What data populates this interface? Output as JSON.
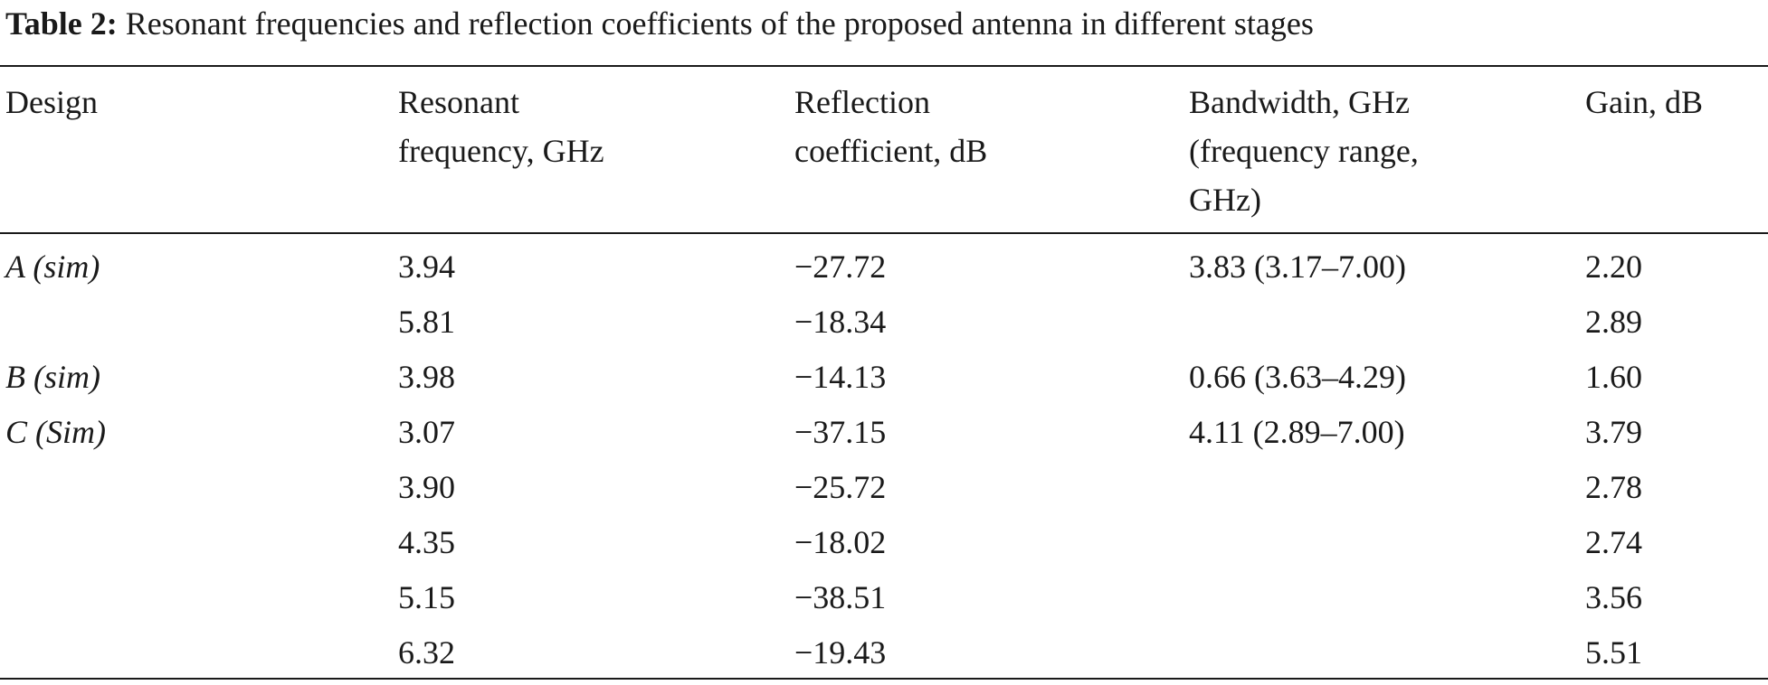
{
  "caption": {
    "label": "Table 2:",
    "text": "Resonant frequencies and reflection coefficients of the proposed antenna in different stages"
  },
  "headers": [
    "Design",
    "Resonant\nfrequency, GHz",
    "Reflection\ncoefficient, dB",
    "Bandwidth, GHz\n(frequency range,\nGHz)",
    "Gain, dB"
  ],
  "rows": [
    {
      "design": "A (sim)",
      "freq": "3.94",
      "refl": "−27.72",
      "bw": "3.83 (3.17–7.00)",
      "gain": "2.20"
    },
    {
      "design": "",
      "freq": "5.81",
      "refl": "−18.34",
      "bw": "",
      "gain": "2.89"
    },
    {
      "design": "B (sim)",
      "freq": "3.98",
      "refl": "−14.13",
      "bw": "0.66 (3.63–4.29)",
      "gain": "1.60"
    },
    {
      "design": "C (Sim)",
      "freq": "3.07",
      "refl": "−37.15",
      "bw": "4.11 (2.89–7.00)",
      "gain": "3.79"
    },
    {
      "design": "",
      "freq": "3.90",
      "refl": "−25.72",
      "bw": "",
      "gain": "2.78"
    },
    {
      "design": "",
      "freq": "4.35",
      "refl": "−18.02",
      "bw": "",
      "gain": "2.74"
    },
    {
      "design": "",
      "freq": "5.15",
      "refl": "−38.51",
      "bw": "",
      "gain": "3.56"
    },
    {
      "design": "",
      "freq": "6.32",
      "refl": "−19.43",
      "bw": "",
      "gain": "5.51"
    }
  ]
}
